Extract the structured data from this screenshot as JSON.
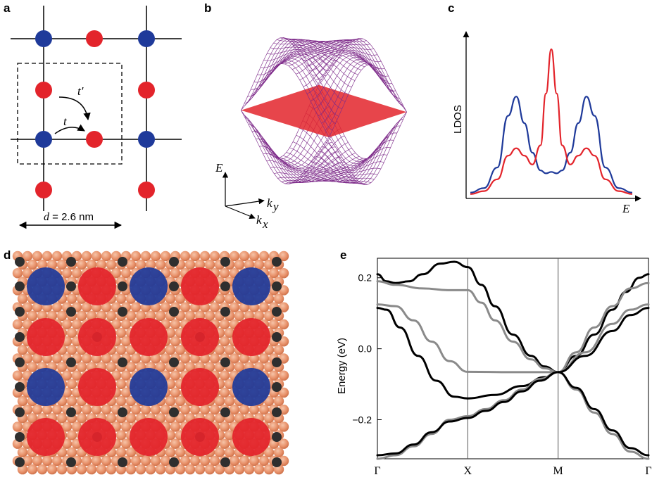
{
  "panels": {
    "a": "a",
    "b": "b",
    "c": "c",
    "d": "d",
    "e": "e"
  },
  "colors": {
    "blue": "#1f3a9a",
    "red": "#e3242b",
    "purple": "#7d2a8a",
    "copper": "#e8916a",
    "dark_atom": "#2f2f2f",
    "band_black": "#000000",
    "band_gray": "#8a8a8a"
  },
  "panel_a": {
    "hop_t": "t",
    "hop_tprime": "t′",
    "dimension": "d = 2.6 nm"
  },
  "panel_b": {
    "axis_E": "E",
    "axis_kx": "k",
    "axis_kx_sub": "x",
    "axis_ky": "k",
    "axis_ky_sub": "y"
  },
  "panel_c": {
    "ylabel": "LDOS",
    "xlabel": "E"
  },
  "panel_d": {
    "large_sites": [
      [
        "blue",
        "red",
        "blue",
        "red",
        "blue"
      ],
      [
        "red",
        "red",
        "red",
        "red",
        "red"
      ],
      [
        "blue",
        "red",
        "blue",
        "red",
        "blue"
      ],
      [
        "red",
        "red",
        "red",
        "red",
        "red"
      ]
    ]
  },
  "chart_data": [
    {
      "type": "line",
      "panel": "c",
      "xlabel": "E",
      "ylabel": "LDOS",
      "x": [
        -3.0,
        -2.5,
        -2.0,
        -1.6,
        -1.3,
        -1.0,
        -0.7,
        -0.4,
        -0.2,
        0.0,
        0.2,
        0.4,
        0.7,
        1.0,
        1.3,
        1.6,
        2.0,
        2.5,
        3.0
      ],
      "series": [
        {
          "color": "blue",
          "values": [
            0.03,
            0.06,
            0.2,
            0.55,
            0.68,
            0.5,
            0.3,
            0.18,
            0.16,
            0.17,
            0.16,
            0.18,
            0.3,
            0.5,
            0.68,
            0.55,
            0.2,
            0.06,
            0.03
          ]
        },
        {
          "color": "red",
          "values": [
            0.02,
            0.04,
            0.12,
            0.28,
            0.33,
            0.28,
            0.22,
            0.35,
            0.7,
            1.0,
            0.7,
            0.35,
            0.22,
            0.28,
            0.33,
            0.28,
            0.12,
            0.04,
            0.02
          ]
        }
      ]
    },
    {
      "type": "line",
      "panel": "e",
      "ylabel": "Energy (eV)",
      "ylim": [
        -0.31,
        0.255
      ],
      "yticks": [
        0.2,
        0.0,
        -0.2
      ],
      "ytick_labels": [
        "0.2",
        "0.0",
        "−0.2"
      ],
      "xticks": [
        "Γ",
        "X",
        "M",
        "Γ"
      ],
      "xtick_positions": [
        0,
        1,
        2,
        3
      ],
      "series": [
        {
          "color": "black",
          "x": [
            0,
            0.1,
            0.2,
            0.35,
            0.5,
            0.7,
            0.85,
            1.0,
            1.15,
            1.3,
            1.5,
            1.7,
            1.85,
            2.0
          ],
          "values": [
            0.21,
            0.19,
            0.185,
            0.19,
            0.21,
            0.24,
            0.245,
            0.23,
            0.18,
            0.12,
            0.04,
            -0.02,
            -0.05,
            -0.066
          ]
        },
        {
          "color": "black",
          "x": [
            2.0,
            2.2,
            2.4,
            2.6,
            2.75,
            2.9,
            3.0
          ],
          "values": [
            -0.066,
            -0.02,
            0.04,
            0.11,
            0.16,
            0.2,
            0.21
          ]
        },
        {
          "color": "gray",
          "x": [
            0,
            0.2,
            0.5,
            0.8,
            1.0,
            1.15,
            1.3,
            1.5,
            1.7,
            1.85,
            2.0
          ],
          "values": [
            0.19,
            0.18,
            0.17,
            0.165,
            0.165,
            0.13,
            0.08,
            0.02,
            -0.03,
            -0.055,
            -0.066
          ]
        },
        {
          "color": "gray",
          "x": [
            2.0,
            2.2,
            2.4,
            2.6,
            2.8,
            3.0
          ],
          "values": [
            -0.066,
            -0.01,
            0.06,
            0.12,
            0.17,
            0.185
          ]
        },
        {
          "color": "gray",
          "x": [
            0,
            0.2,
            0.4,
            0.6,
            0.8,
            1.0,
            1.5,
            2.0
          ],
          "values": [
            0.125,
            0.12,
            0.08,
            0.02,
            -0.035,
            -0.065,
            -0.066,
            -0.066
          ]
        },
        {
          "color": "gray",
          "x": [
            2.0,
            2.3,
            2.6,
            2.8,
            3.0
          ],
          "values": [
            -0.066,
            -0.01,
            0.07,
            0.11,
            0.125
          ]
        },
        {
          "color": "black",
          "x": [
            0,
            0.1,
            0.25,
            0.45,
            0.65,
            0.85,
            1.0,
            1.3,
            1.6,
            1.85,
            2.0
          ],
          "values": [
            0.115,
            0.11,
            0.06,
            -0.02,
            -0.09,
            -0.135,
            -0.14,
            -0.13,
            -0.105,
            -0.08,
            -0.066
          ]
        },
        {
          "color": "black",
          "x": [
            2.0,
            2.3,
            2.6,
            2.8,
            3.0
          ],
          "values": [
            -0.066,
            -0.02,
            0.05,
            0.095,
            0.115
          ]
        },
        {
          "color": "gray",
          "x": [
            0,
            0.2,
            0.4,
            0.6,
            0.8,
            1.0,
            1.2,
            1.4,
            1.6,
            1.8,
            2.0
          ],
          "values": [
            -0.31,
            -0.3,
            -0.275,
            -0.24,
            -0.2,
            -0.19,
            -0.17,
            -0.145,
            -0.115,
            -0.085,
            -0.066
          ]
        },
        {
          "color": "black",
          "x": [
            0,
            0.2,
            0.4,
            0.6,
            0.8,
            1.0,
            1.2,
            1.4,
            1.6,
            1.8,
            2.0
          ],
          "values": [
            -0.3,
            -0.295,
            -0.27,
            -0.235,
            -0.205,
            -0.195,
            -0.175,
            -0.15,
            -0.12,
            -0.09,
            -0.066
          ]
        },
        {
          "color": "gray",
          "x": [
            2.0,
            2.2,
            2.4,
            2.6,
            2.8,
            3.0
          ],
          "values": [
            -0.066,
            -0.115,
            -0.18,
            -0.24,
            -0.29,
            -0.31
          ]
        },
        {
          "color": "black",
          "x": [
            2.0,
            2.2,
            2.4,
            2.6,
            2.8,
            3.0
          ],
          "values": [
            -0.066,
            -0.11,
            -0.17,
            -0.23,
            -0.28,
            -0.3
          ]
        }
      ]
    }
  ]
}
